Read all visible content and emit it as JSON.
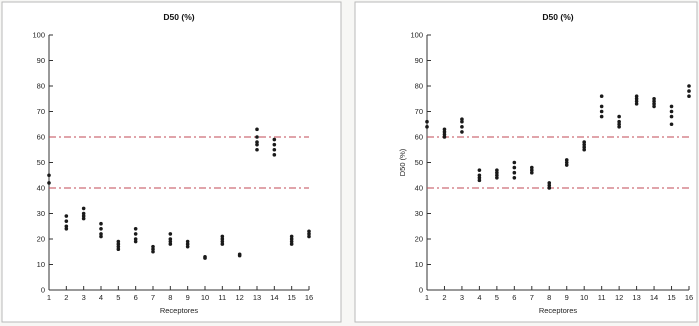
{
  "chart_data": [
    {
      "type": "scatter",
      "title": "D50 (%)",
      "xlabel": "Receptores",
      "ylabel": "",
      "xlim": [
        1,
        16
      ],
      "ylim": [
        0,
        100
      ],
      "xticks": [
        1,
        2,
        3,
        4,
        5,
        6,
        7,
        8,
        9,
        10,
        11,
        12,
        13,
        14,
        15,
        16
      ],
      "yticks": [
        0,
        10,
        20,
        30,
        40,
        50,
        60,
        70,
        80,
        90,
        100
      ],
      "grid": false,
      "reference_lines": [
        {
          "y": 60,
          "color": "#c04a55",
          "style": "dash-dot"
        },
        {
          "y": 40,
          "color": "#c04a55",
          "style": "dash-dot"
        }
      ],
      "points": [
        {
          "x": 1,
          "y": 45
        },
        {
          "x": 1,
          "y": 42
        },
        {
          "x": 2,
          "y": 29
        },
        {
          "x": 2,
          "y": 27
        },
        {
          "x": 2,
          "y": 25
        },
        {
          "x": 2,
          "y": 24
        },
        {
          "x": 3,
          "y": 32
        },
        {
          "x": 3,
          "y": 30
        },
        {
          "x": 3,
          "y": 29
        },
        {
          "x": 3,
          "y": 28
        },
        {
          "x": 4,
          "y": 26
        },
        {
          "x": 4,
          "y": 24
        },
        {
          "x": 4,
          "y": 22
        },
        {
          "x": 4,
          "y": 21
        },
        {
          "x": 5,
          "y": 19
        },
        {
          "x": 5,
          "y": 18
        },
        {
          "x": 5,
          "y": 17
        },
        {
          "x": 5,
          "y": 16
        },
        {
          "x": 6,
          "y": 24
        },
        {
          "x": 6,
          "y": 22
        },
        {
          "x": 6,
          "y": 20
        },
        {
          "x": 6,
          "y": 19
        },
        {
          "x": 7,
          "y": 17
        },
        {
          "x": 7,
          "y": 16
        },
        {
          "x": 7,
          "y": 15
        },
        {
          "x": 8,
          "y": 22
        },
        {
          "x": 8,
          "y": 20
        },
        {
          "x": 8,
          "y": 19
        },
        {
          "x": 8,
          "y": 18
        },
        {
          "x": 9,
          "y": 19
        },
        {
          "x": 9,
          "y": 18
        },
        {
          "x": 9,
          "y": 17
        },
        {
          "x": 10,
          "y": 13
        },
        {
          "x": 10,
          "y": 12.5
        },
        {
          "x": 11,
          "y": 21
        },
        {
          "x": 11,
          "y": 20
        },
        {
          "x": 11,
          "y": 19
        },
        {
          "x": 11,
          "y": 18
        },
        {
          "x": 12,
          "y": 14
        },
        {
          "x": 12,
          "y": 13.5
        },
        {
          "x": 13,
          "y": 63
        },
        {
          "x": 13,
          "y": 60
        },
        {
          "x": 13,
          "y": 58
        },
        {
          "x": 13,
          "y": 57
        },
        {
          "x": 13,
          "y": 55
        },
        {
          "x": 14,
          "y": 59
        },
        {
          "x": 14,
          "y": 57
        },
        {
          "x": 14,
          "y": 55
        },
        {
          "x": 14,
          "y": 53
        },
        {
          "x": 15,
          "y": 21
        },
        {
          "x": 15,
          "y": 20
        },
        {
          "x": 15,
          "y": 19
        },
        {
          "x": 15,
          "y": 18
        },
        {
          "x": 16,
          "y": 23
        },
        {
          "x": 16,
          "y": 22
        },
        {
          "x": 16,
          "y": 21
        }
      ]
    },
    {
      "type": "scatter",
      "title": "D50 (%)",
      "xlabel": "Receptores",
      "ylabel": "D50 (%)",
      "xlim": [
        1,
        16
      ],
      "ylim": [
        0,
        100
      ],
      "xticks": [
        1,
        2,
        3,
        4,
        5,
        6,
        7,
        8,
        9,
        10,
        11,
        12,
        13,
        14,
        15,
        16
      ],
      "yticks": [
        0,
        10,
        20,
        30,
        40,
        50,
        60,
        70,
        80,
        90,
        100
      ],
      "grid": false,
      "reference_lines": [
        {
          "y": 60,
          "color": "#c04a55",
          "style": "dash-dot"
        },
        {
          "y": 40,
          "color": "#c04a55",
          "style": "dash-dot"
        }
      ],
      "points": [
        {
          "x": 1,
          "y": 66
        },
        {
          "x": 1,
          "y": 64
        },
        {
          "x": 2,
          "y": 63
        },
        {
          "x": 2,
          "y": 62
        },
        {
          "x": 2,
          "y": 61
        },
        {
          "x": 2,
          "y": 60
        },
        {
          "x": 3,
          "y": 67
        },
        {
          "x": 3,
          "y": 66
        },
        {
          "x": 3,
          "y": 64
        },
        {
          "x": 3,
          "y": 62
        },
        {
          "x": 4,
          "y": 47
        },
        {
          "x": 4,
          "y": 45
        },
        {
          "x": 4,
          "y": 44
        },
        {
          "x": 4,
          "y": 43
        },
        {
          "x": 5,
          "y": 47
        },
        {
          "x": 5,
          "y": 46
        },
        {
          "x": 5,
          "y": 45
        },
        {
          "x": 5,
          "y": 44
        },
        {
          "x": 6,
          "y": 50
        },
        {
          "x": 6,
          "y": 48
        },
        {
          "x": 6,
          "y": 46
        },
        {
          "x": 6,
          "y": 44
        },
        {
          "x": 7,
          "y": 48
        },
        {
          "x": 7,
          "y": 47
        },
        {
          "x": 7,
          "y": 46
        },
        {
          "x": 8,
          "y": 42
        },
        {
          "x": 8,
          "y": 41
        },
        {
          "x": 8,
          "y": 40
        },
        {
          "x": 9,
          "y": 51
        },
        {
          "x": 9,
          "y": 50
        },
        {
          "x": 9,
          "y": 49
        },
        {
          "x": 10,
          "y": 58
        },
        {
          "x": 10,
          "y": 57
        },
        {
          "x": 10,
          "y": 56
        },
        {
          "x": 10,
          "y": 55
        },
        {
          "x": 11,
          "y": 76
        },
        {
          "x": 11,
          "y": 72
        },
        {
          "x": 11,
          "y": 70
        },
        {
          "x": 11,
          "y": 68
        },
        {
          "x": 12,
          "y": 68
        },
        {
          "x": 12,
          "y": 66
        },
        {
          "x": 12,
          "y": 65
        },
        {
          "x": 12,
          "y": 64
        },
        {
          "x": 13,
          "y": 76
        },
        {
          "x": 13,
          "y": 75
        },
        {
          "x": 13,
          "y": 74
        },
        {
          "x": 13,
          "y": 73
        },
        {
          "x": 14,
          "y": 75
        },
        {
          "x": 14,
          "y": 74
        },
        {
          "x": 14,
          "y": 73
        },
        {
          "x": 14,
          "y": 72
        },
        {
          "x": 15,
          "y": 72
        },
        {
          "x": 15,
          "y": 70
        },
        {
          "x": 15,
          "y": 68
        },
        {
          "x": 15,
          "y": 65
        },
        {
          "x": 16,
          "y": 80
        },
        {
          "x": 16,
          "y": 78
        },
        {
          "x": 16,
          "y": 76
        }
      ]
    }
  ]
}
